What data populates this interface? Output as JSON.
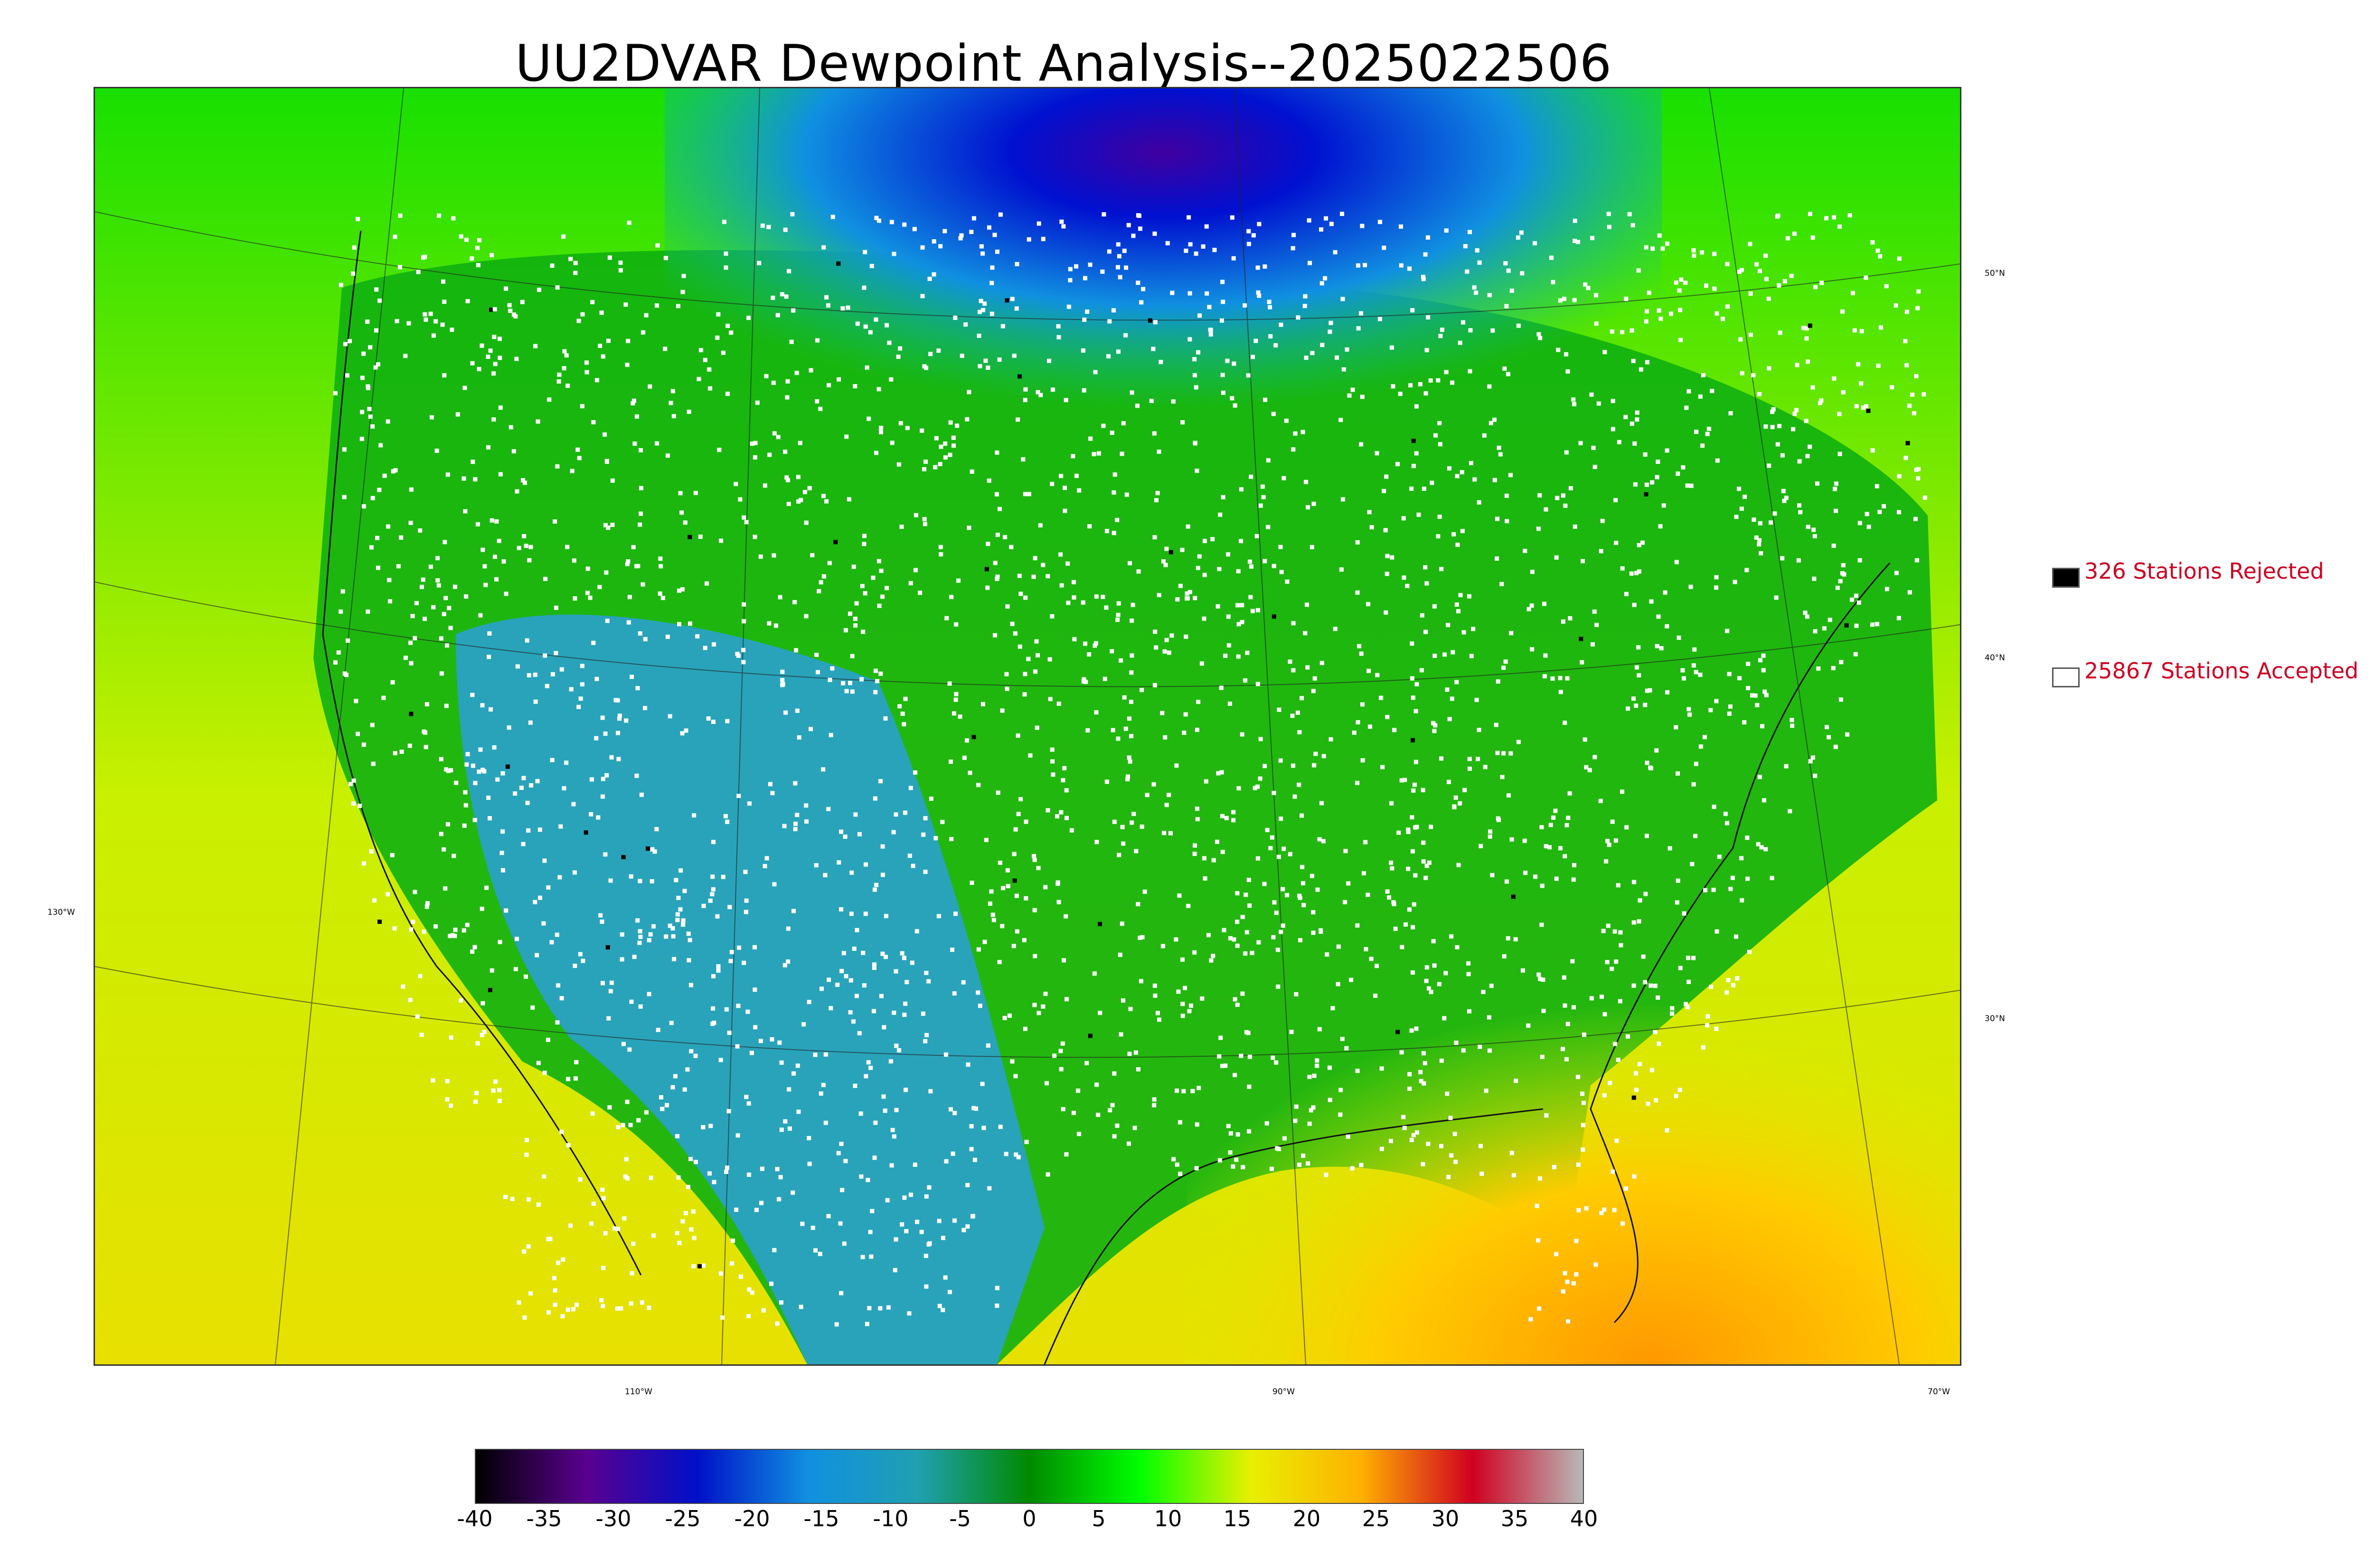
{
  "title": "UU2DVAR Dewpoint Analysis--2025022506",
  "legend": {
    "rejected": {
      "label": "326 Stations Rejected",
      "swatch_color": "#000000"
    },
    "accepted": {
      "label": "25867 Stations Accepted",
      "swatch_color": "#ffffff"
    }
  },
  "map": {
    "latitude_labels": [
      "50°N",
      "40°N",
      "30°N"
    ],
    "longitude_labels": [
      "130°W",
      "110°W",
      "90°W",
      "70°W"
    ]
  },
  "colorbar": {
    "ticks": [
      "-40",
      "-35",
      "-30",
      "-25",
      "-20",
      "-15",
      "-10",
      "-5",
      "0",
      "5",
      "10",
      "15",
      "20",
      "25",
      "30",
      "35",
      "40"
    ],
    "range": [
      -40,
      40
    ],
    "colors": [
      "#000000",
      "#5a0090",
      "#0010c8",
      "#1090e0",
      "#20a0b0",
      "#008a00",
      "#00ff00",
      "#e8f000",
      "#ffb000",
      "#d00020",
      "#b8b8b8"
    ]
  }
}
